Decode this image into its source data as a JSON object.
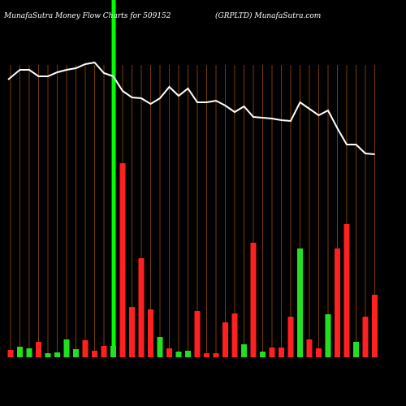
{
  "chart_data": {
    "type": "bar",
    "title": "MunafaSutra  Money Flow  Charts for 509152",
    "subtitle": "(GRPLTD) MunafaSutra.com",
    "values": [
      9,
      13,
      11,
      19,
      5,
      6,
      22,
      10,
      21,
      8,
      14,
      14,
      239,
      62,
      122,
      59,
      25,
      11,
      7,
      8,
      57,
      5,
      5,
      43,
      54,
      16,
      141,
      7,
      12,
      12,
      50,
      134,
      22,
      11,
      53,
      134,
      164,
      19,
      50,
      77
    ],
    "colors": [
      "#ff2020",
      "#20e020",
      "#20e020",
      "#ff2020",
      "#20e020",
      "#20e020",
      "#20e020",
      "#20e020",
      "#ff2020",
      "#ff2020",
      "#ff2020",
      "#20e020",
      "#ff2020",
      "#ff2020",
      "#ff2020",
      "#ff2020",
      "#20e020",
      "#ff2020",
      "#20e020",
      "#20e020",
      "#ff2020",
      "#ff2020",
      "#ff2020",
      "#ff2020",
      "#ff2020",
      "#20e020",
      "#ff2020",
      "#20e020",
      "#ff2020",
      "#ff2020",
      "#ff2020",
      "#20e020",
      "#ff2020",
      "#ff2020",
      "#20e020",
      "#ff2020",
      "#ff2020",
      "#20e020",
      "#ff2020",
      "#ff2020"
    ],
    "line": {
      "color": "#ffffff",
      "values": [
        342,
        354,
        354,
        346,
        346,
        351,
        354,
        356,
        361,
        363,
        350,
        346,
        328,
        320,
        319,
        312,
        319,
        333,
        322,
        331,
        314,
        314,
        316,
        310,
        302,
        309,
        296,
        295,
        294,
        292,
        291,
        314,
        306,
        298,
        304,
        282,
        262,
        262,
        251,
        250
      ]
    },
    "ylim": [
      0,
      440
    ]
  }
}
